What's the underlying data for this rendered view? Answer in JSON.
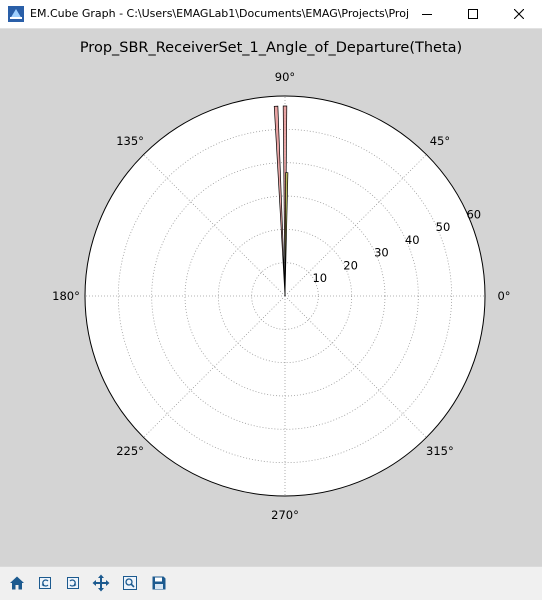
{
  "window": {
    "title": "EM.Cube Graph - C:\\Users\\EMAGLab1\\Documents\\EMAG\\Projects\\Proj",
    "icon": "emcube-app-icon",
    "controls": [
      "minimize-icon",
      "maximize-icon",
      "close-icon"
    ]
  },
  "toolbar": {
    "buttons": [
      {
        "name": "home-button",
        "icon": "home-icon"
      },
      {
        "name": "back-button",
        "icon": "back-arrow-icon"
      },
      {
        "name": "forward-button",
        "icon": "forward-arrow-icon"
      },
      {
        "name": "pan-button",
        "icon": "move-arrows-icon"
      },
      {
        "name": "zoom-button",
        "icon": "zoom-magnifier-icon"
      },
      {
        "name": "save-button",
        "icon": "floppy-disk-icon"
      }
    ]
  },
  "chart_data": {
    "type": "polar-bar",
    "title": "Prop_SBR_ReceiverSet_1_Angle_of_Departure(Theta)",
    "angle_unit": "degrees",
    "angle_ticks": [
      "0°",
      "45°",
      "90°",
      "135°",
      "180°",
      "225°",
      "270°",
      "315°"
    ],
    "radial_ticks": [
      "10",
      "20",
      "30",
      "40",
      "50",
      "60"
    ],
    "radial_range": [
      0,
      60
    ],
    "radial_label_angle": 22.5,
    "grid": true,
    "colors": {
      "pink_bar": "#e79a9a",
      "olive_bar": "#bfbf5a",
      "axis_face": "#ffffff",
      "figure_bg": "#d4d4d4"
    },
    "bars": [
      {
        "angle": 92.7,
        "radius": 57.0,
        "color": "pink"
      },
      {
        "angle": 90.0,
        "radius": 57.0,
        "color": "pink"
      },
      {
        "angle": 89.2,
        "radius": 37.0,
        "color": "olive"
      }
    ]
  }
}
